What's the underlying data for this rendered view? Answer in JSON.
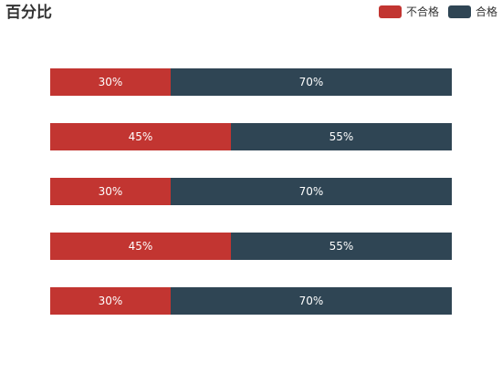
{
  "chart_data": {
    "type": "bar",
    "orientation": "horizontal",
    "stacked": true,
    "title": "百分比",
    "xlabel": "",
    "ylabel": "",
    "xlim": [
      0,
      100
    ],
    "grid": false,
    "legend_position": "top-right",
    "categories": [
      "",
      "",
      "",
      "",
      ""
    ],
    "series": [
      {
        "name": "不合格",
        "color": "#c23531",
        "values": [
          30,
          45,
          30,
          45,
          30
        ],
        "labels": [
          "30%",
          "45%",
          "30%",
          "45%",
          "30%"
        ]
      },
      {
        "name": "合格",
        "color": "#2f4554",
        "values": [
          70,
          55,
          70,
          55,
          70
        ],
        "labels": [
          "70%",
          "55%",
          "70%",
          "55%",
          "70%"
        ]
      }
    ]
  }
}
